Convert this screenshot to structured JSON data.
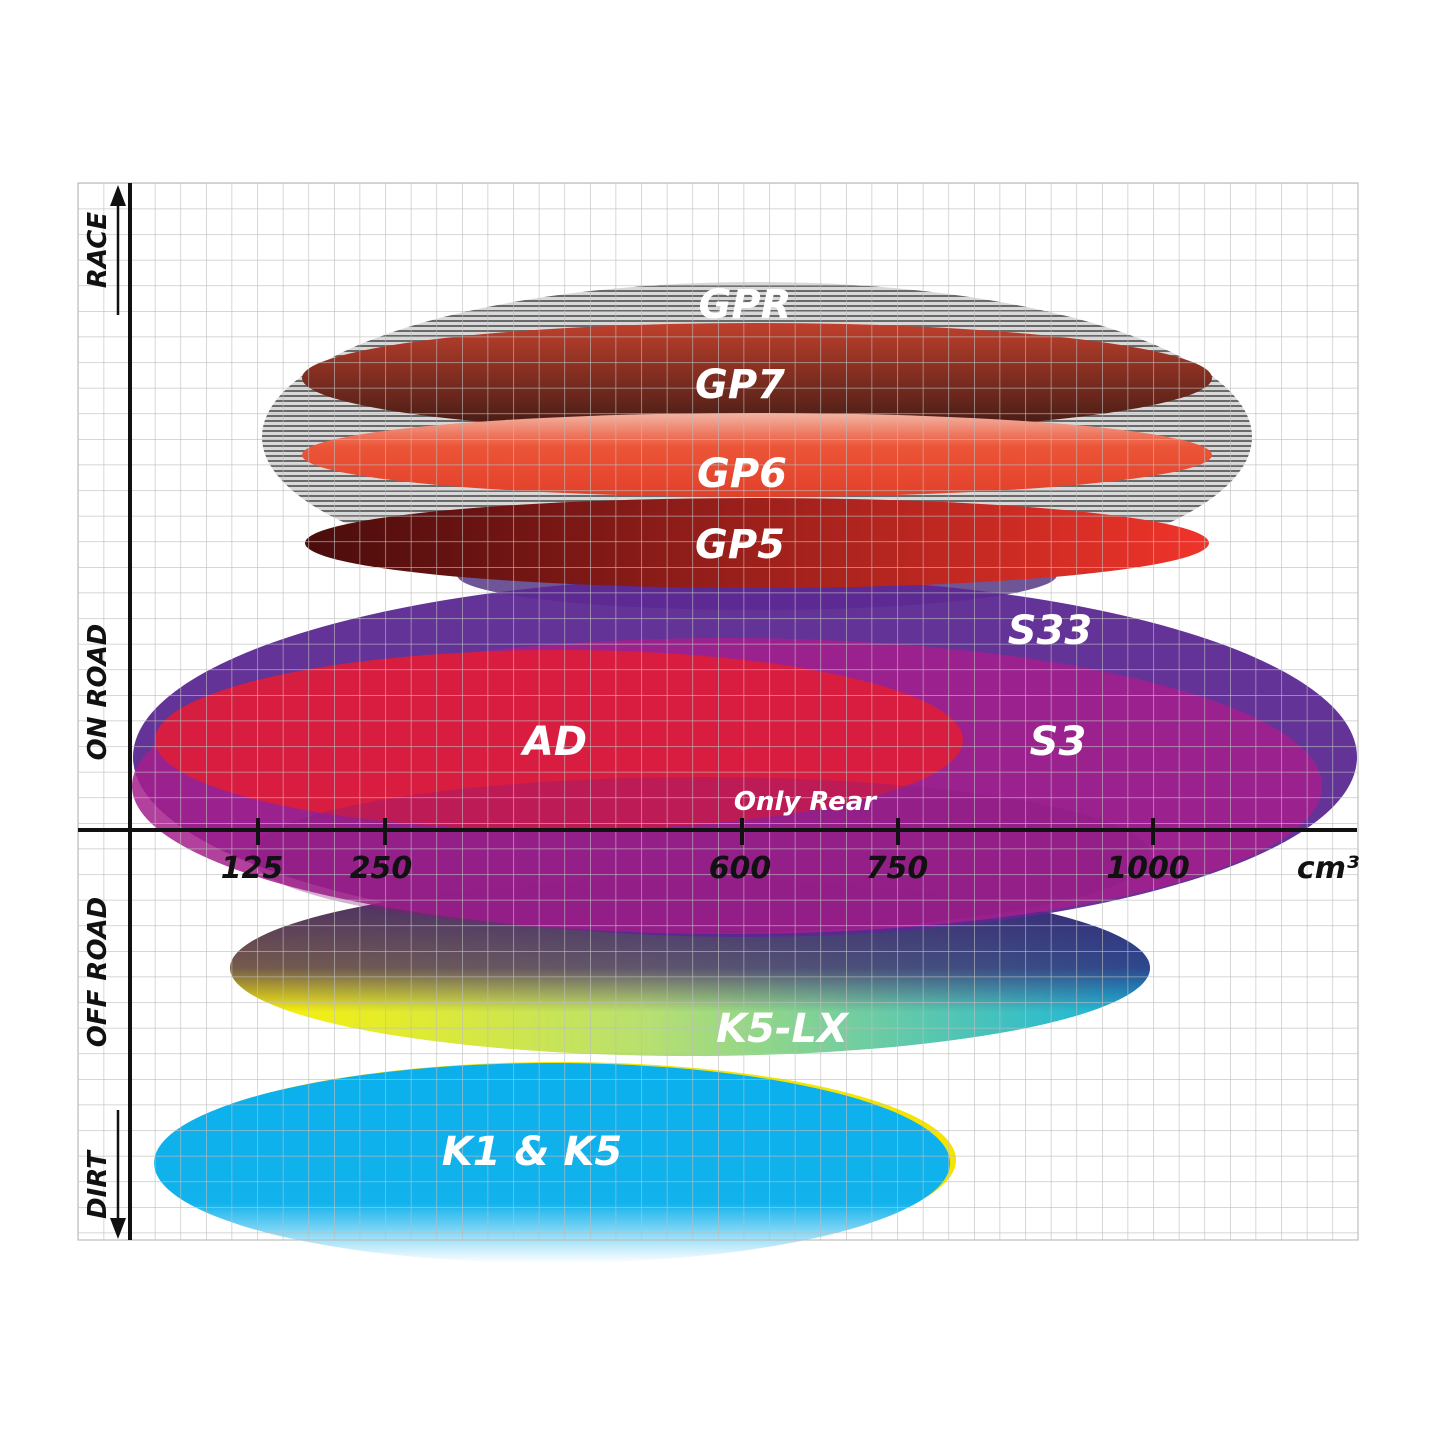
{
  "chart_data": {
    "type": "ellipse-positioning",
    "x_axis": {
      "unit": "cm³",
      "ticks": [
        "125",
        "250",
        "600",
        "750",
        "1000"
      ]
    },
    "y_axis": {
      "labels": [
        "RACE",
        "ON ROAD",
        "OFF ROAD",
        "DIRT"
      ]
    },
    "grid": true,
    "products": [
      {
        "name": "GPR",
        "color": "#9a9a9a"
      },
      {
        "name": "GP7",
        "color": "#8a2a1e"
      },
      {
        "name": "GP6",
        "color": "#e5432e"
      },
      {
        "name": "GP5",
        "color": "#c8281c"
      },
      {
        "name": "S33",
        "color": "#5a2a8e"
      },
      {
        "name": "S3",
        "color": "#a0208a"
      },
      {
        "name": "AD",
        "color": "#dc1e3c"
      },
      {
        "name": "K5-LX",
        "color": "#20b8d8"
      },
      {
        "name": "K1 & K5",
        "color": "#0ab0ec"
      }
    ],
    "annotation": "Only Rear"
  }
}
